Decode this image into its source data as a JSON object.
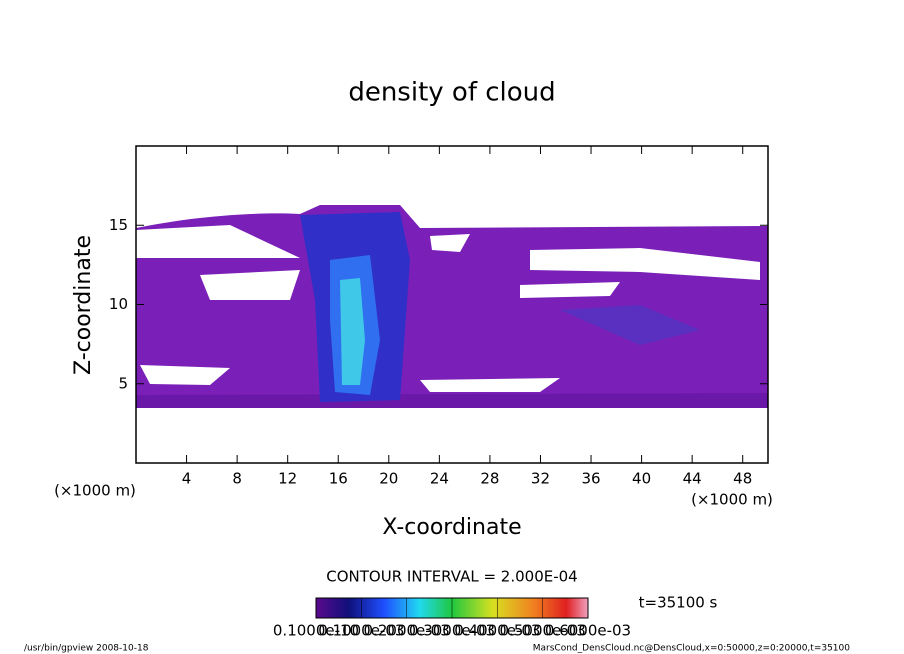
{
  "chart_data": {
    "type": "contour",
    "title": "density of cloud",
    "x_label": "X-coordinate",
    "y_label": "Z-coordinate",
    "x_unit": "(×1000 m)",
    "y_unit": "(×1000 m)",
    "xlim": [
      0,
      50
    ],
    "xticks": [
      4,
      8,
      12,
      16,
      20,
      24,
      28,
      32,
      36,
      40,
      44,
      48
    ],
    "ylim": [
      0,
      20
    ],
    "yticks": [
      5,
      10,
      15
    ],
    "contour_interval": "CONTOUR INTERVAL = 2.000E-04",
    "time_label": "t=35100 s",
    "colorbar_lim": [
      0,
      0.0006
    ],
    "colorbar_ticks": [
      {
        "value": 1e-11,
        "label": "0.1000e-10"
      },
      {
        "value": 0.0001,
        "label": "0.1000e-03"
      },
      {
        "value": 0.0002,
        "label": "0.2000e-03"
      },
      {
        "value": 0.0003,
        "label": "0.3000e-03"
      },
      {
        "value": 0.0004,
        "label": "0.4000e-03"
      },
      {
        "value": 0.0005,
        "label": "0.5000e-03"
      },
      {
        "value": 0.0006,
        "label": "0.6000e-03"
      }
    ],
    "footer_left": "/usr/bin/gpview  2008-10-18",
    "footer_right": "MarsCond_DensCloud.nc@DensCloud,x=0:50000,z=0:20000,t=35100"
  }
}
